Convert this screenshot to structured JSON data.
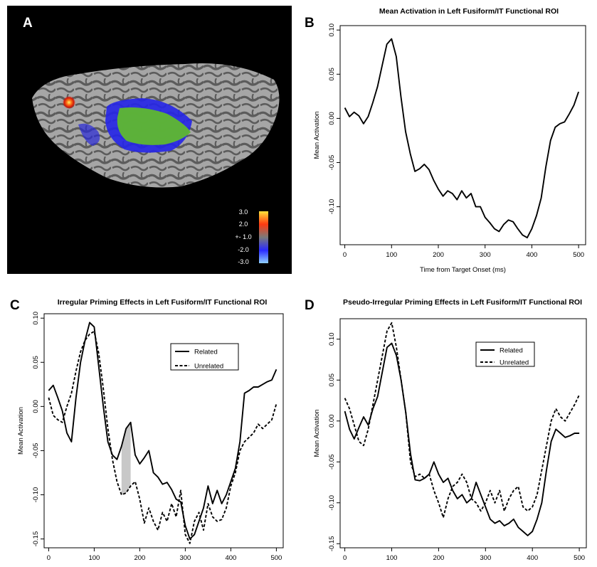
{
  "panels": {
    "A": {
      "letter": "A",
      "colorbar": {
        "labels": [
          "3.0",
          "2.0",
          "+- 1.0",
          "-2.0",
          "-3.0"
        ],
        "colors": [
          "#ffe23a",
          "#ff3a10",
          "#7a7a7a",
          "#2a2aff",
          "#8fd0ff"
        ]
      }
    },
    "B": {
      "letter": "B"
    },
    "C": {
      "letter": "C"
    },
    "D": {
      "letter": "D"
    }
  },
  "chart_data": [
    {
      "id": "B",
      "type": "line",
      "title": "Mean Activation in Left Fusiform/IT Functional ROI",
      "xlabel": "Time from Target Onset (ms)",
      "ylabel": "Mean Activation",
      "xlim": [
        -10,
        515
      ],
      "ylim": [
        -0.143,
        0.105
      ],
      "xticks": [
        0,
        100,
        200,
        300,
        400,
        500
      ],
      "yticks": [
        -0.1,
        -0.05,
        0.0,
        0.05,
        0.1
      ],
      "yticklabels": [
        "-0.10",
        "-0.05",
        "0.00",
        "0.05",
        "0.10"
      ],
      "grid": false,
      "series": [
        {
          "style": "solid",
          "x": [
            0,
            10,
            20,
            30,
            40,
            50,
            60,
            70,
            80,
            90,
            100,
            110,
            120,
            130,
            140,
            150,
            160,
            170,
            180,
            190,
            200,
            210,
            220,
            230,
            240,
            250,
            260,
            270,
            280,
            290,
            300,
            310,
            320,
            330,
            340,
            350,
            360,
            370,
            380,
            390,
            400,
            410,
            420,
            430,
            440,
            450,
            460,
            470,
            480,
            490,
            500
          ],
          "y": [
            0.012,
            0.002,
            0.007,
            0.003,
            -0.006,
            0.002,
            0.018,
            0.036,
            0.06,
            0.084,
            0.09,
            0.07,
            0.025,
            -0.015,
            -0.04,
            -0.06,
            -0.057,
            -0.052,
            -0.058,
            -0.07,
            -0.08,
            -0.088,
            -0.082,
            -0.085,
            -0.092,
            -0.082,
            -0.09,
            -0.085,
            -0.1,
            -0.1,
            -0.112,
            -0.118,
            -0.125,
            -0.128,
            -0.12,
            -0.115,
            -0.117,
            -0.125,
            -0.132,
            -0.135,
            -0.125,
            -0.11,
            -0.09,
            -0.055,
            -0.025,
            -0.01,
            -0.006,
            -0.004,
            0.005,
            0.015,
            0.03
          ]
        }
      ]
    },
    {
      "id": "C",
      "type": "line",
      "title": "Irregular Priming Effects in Left Fusiform/IT Functional ROI",
      "xlabel": "Time from Target Onset (ms)",
      "ylabel": "Mean Activation",
      "xlim": [
        -10,
        515
      ],
      "ylim": [
        -0.16,
        0.105
      ],
      "xticks": [
        0,
        100,
        200,
        300,
        400,
        500
      ],
      "yticks": [
        -0.15,
        -0.1,
        -0.05,
        0.0,
        0.05,
        0.1
      ],
      "yticklabels": [
        "-0.15",
        "-0.10",
        "-0.05",
        "0.00",
        "0.05",
        "0.10"
      ],
      "grid": false,
      "legend": {
        "position": "top-right",
        "entries": [
          "Related",
          "Unrelated"
        ]
      },
      "shaded_region": {
        "x": [
          160,
          180
        ]
      },
      "series": [
        {
          "name": "Related",
          "style": "solid",
          "x": [
            0,
            10,
            20,
            30,
            40,
            50,
            60,
            70,
            80,
            90,
            100,
            110,
            120,
            130,
            140,
            150,
            160,
            170,
            180,
            190,
            200,
            210,
            220,
            230,
            240,
            250,
            260,
            270,
            280,
            290,
            300,
            310,
            320,
            330,
            340,
            350,
            360,
            370,
            380,
            390,
            400,
            410,
            420,
            430,
            440,
            450,
            460,
            470,
            480,
            490,
            500
          ],
          "y": [
            0.018,
            0.024,
            0.01,
            -0.005,
            -0.03,
            -0.04,
            0.01,
            0.05,
            0.075,
            0.095,
            0.09,
            0.045,
            0.0,
            -0.04,
            -0.055,
            -0.06,
            -0.045,
            -0.025,
            -0.018,
            -0.055,
            -0.065,
            -0.058,
            -0.05,
            -0.075,
            -0.08,
            -0.088,
            -0.086,
            -0.094,
            -0.105,
            -0.108,
            -0.135,
            -0.15,
            -0.145,
            -0.13,
            -0.115,
            -0.09,
            -0.11,
            -0.095,
            -0.11,
            -0.1,
            -0.085,
            -0.07,
            -0.04,
            0.015,
            0.018,
            0.022,
            0.022,
            0.025,
            0.028,
            0.03,
            0.042
          ]
        },
        {
          "name": "Unrelated",
          "style": "dashed",
          "x": [
            0,
            10,
            20,
            30,
            40,
            50,
            60,
            70,
            80,
            90,
            100,
            110,
            120,
            130,
            140,
            150,
            160,
            170,
            180,
            190,
            200,
            210,
            220,
            230,
            240,
            250,
            260,
            270,
            280,
            290,
            300,
            310,
            320,
            330,
            340,
            350,
            360,
            370,
            380,
            390,
            400,
            410,
            420,
            430,
            440,
            450,
            460,
            470,
            480,
            490,
            500
          ],
          "y": [
            0.01,
            -0.01,
            -0.015,
            -0.018,
            0.0,
            0.015,
            0.04,
            0.062,
            0.075,
            0.082,
            0.085,
            0.06,
            0.02,
            -0.025,
            -0.06,
            -0.085,
            -0.1,
            -0.098,
            -0.09,
            -0.085,
            -0.105,
            -0.132,
            -0.115,
            -0.13,
            -0.14,
            -0.12,
            -0.13,
            -0.11,
            -0.125,
            -0.095,
            -0.145,
            -0.155,
            -0.13,
            -0.12,
            -0.14,
            -0.11,
            -0.125,
            -0.13,
            -0.128,
            -0.115,
            -0.09,
            -0.075,
            -0.05,
            -0.04,
            -0.035,
            -0.03,
            -0.02,
            -0.025,
            -0.02,
            -0.015,
            0.003
          ]
        }
      ]
    },
    {
      "id": "D",
      "type": "line",
      "title": "Pseudo-Irregular Priming Effects in Left Fusiform/IT Functional ROI",
      "xlabel": "Time from Target Onset (ms)",
      "ylabel": "Mean Activation",
      "xlim": [
        -10,
        515
      ],
      "ylim": [
        -0.155,
        0.125
      ],
      "xticks": [
        0,
        100,
        200,
        300,
        400,
        500
      ],
      "yticks": [
        -0.15,
        -0.1,
        -0.05,
        0.0,
        0.05,
        0.1
      ],
      "yticklabels": [
        "-0.15",
        "-0.10",
        "-0.05",
        "0.00",
        "0.05",
        "0.10"
      ],
      "grid": false,
      "legend": {
        "position": "top-right",
        "entries": [
          "Related",
          "Unrelated"
        ]
      },
      "series": [
        {
          "name": "Related",
          "style": "solid",
          "x": [
            0,
            10,
            20,
            30,
            40,
            50,
            60,
            70,
            80,
            90,
            100,
            110,
            120,
            130,
            140,
            150,
            160,
            170,
            180,
            190,
            200,
            210,
            220,
            230,
            240,
            250,
            260,
            270,
            280,
            290,
            300,
            310,
            320,
            330,
            340,
            350,
            360,
            370,
            380,
            390,
            400,
            410,
            420,
            430,
            440,
            450,
            460,
            470,
            480,
            490,
            500
          ],
          "y": [
            0.012,
            -0.01,
            -0.022,
            -0.008,
            0.005,
            -0.005,
            0.015,
            0.03,
            0.06,
            0.09,
            0.095,
            0.08,
            0.05,
            0.01,
            -0.04,
            -0.072,
            -0.073,
            -0.07,
            -0.065,
            -0.05,
            -0.065,
            -0.075,
            -0.07,
            -0.085,
            -0.095,
            -0.09,
            -0.1,
            -0.095,
            -0.075,
            -0.09,
            -0.105,
            -0.12,
            -0.125,
            -0.122,
            -0.128,
            -0.125,
            -0.12,
            -0.13,
            -0.135,
            -0.14,
            -0.135,
            -0.12,
            -0.1,
            -0.06,
            -0.025,
            -0.01,
            -0.015,
            -0.02,
            -0.018,
            -0.015,
            -0.015
          ]
        },
        {
          "name": "Unrelated",
          "style": "dashed",
          "x": [
            0,
            10,
            20,
            30,
            40,
            50,
            60,
            70,
            80,
            90,
            100,
            110,
            120,
            130,
            140,
            150,
            160,
            170,
            180,
            190,
            200,
            210,
            220,
            230,
            240,
            250,
            260,
            270,
            280,
            290,
            300,
            310,
            320,
            330,
            340,
            350,
            360,
            370,
            380,
            390,
            400,
            410,
            420,
            430,
            440,
            450,
            460,
            470,
            480,
            490,
            500
          ],
          "y": [
            0.028,
            0.015,
            -0.005,
            -0.025,
            -0.03,
            -0.01,
            0.02,
            0.05,
            0.08,
            0.11,
            0.12,
            0.09,
            0.05,
            0.01,
            -0.05,
            -0.068,
            -0.065,
            -0.07,
            -0.065,
            -0.085,
            -0.1,
            -0.118,
            -0.095,
            -0.08,
            -0.075,
            -0.065,
            -0.075,
            -0.095,
            -0.1,
            -0.11,
            -0.1,
            -0.085,
            -0.1,
            -0.085,
            -0.11,
            -0.095,
            -0.085,
            -0.08,
            -0.105,
            -0.11,
            -0.105,
            -0.09,
            -0.06,
            -0.03,
            0.0,
            0.015,
            0.005,
            0.0,
            0.01,
            0.02,
            0.032
          ]
        }
      ]
    }
  ]
}
